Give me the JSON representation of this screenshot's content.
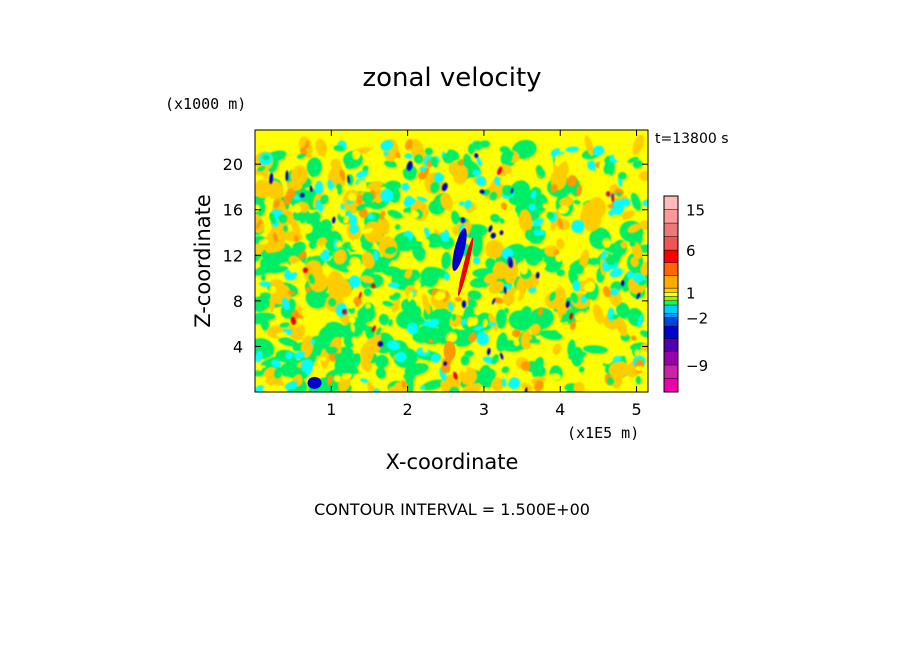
{
  "chart_data": {
    "type": "heatmap",
    "title": "zonal velocity",
    "xlabel": "X-coordinate",
    "ylabel": "Z-coordinate",
    "x_unit": "(x1E5 m)",
    "y_unit": "(x1000 m)",
    "time_label": "t=13800 s",
    "footer": "CONTOUR INTERVAL = 1.500E+00",
    "xlim": [
      0,
      5.15
    ],
    "ylim": [
      0,
      23
    ],
    "x_ticks": [
      1,
      2,
      3,
      4,
      5
    ],
    "y_ticks": [
      4,
      8,
      12,
      16,
      20
    ],
    "colorbar": {
      "levels": [
        -15,
        -12,
        -9,
        -6,
        -4.5,
        -3,
        -2,
        -1.5,
        -0.5,
        0,
        0.5,
        1,
        1.5,
        3,
        4.5,
        6,
        9,
        12,
        15,
        18
      ],
      "colors": [
        "#ee00aa",
        "#cc22aa",
        "#9900aa",
        "#5500aa",
        "#0000cc",
        "#0044dd",
        "#0099ff",
        "#00ccff",
        "#00ff66",
        "#88ff00",
        "#ffff00",
        "#ffcc00",
        "#ffaa00",
        "#ff6600",
        "#ff0000",
        "#ee5555",
        "#ee7777",
        "#ff9999",
        "#ffbbbb"
      ],
      "tick_labels": [
        {
          "label": "15",
          "value": 15
        },
        {
          "label": "6",
          "value": 6
        },
        {
          "label": "1",
          "value": 1
        },
        {
          "label": "−2",
          "value": -2
        },
        {
          "label": "−9",
          "value": -9
        }
      ]
    },
    "field_palette": {
      "blue": "#0000cc",
      "cyan": "#00ffff",
      "green": "#00ee66",
      "yellow": "#ffff00",
      "orange": "#ffcc00",
      "darkorange": "#ff9900",
      "red": "#ee0000"
    }
  }
}
